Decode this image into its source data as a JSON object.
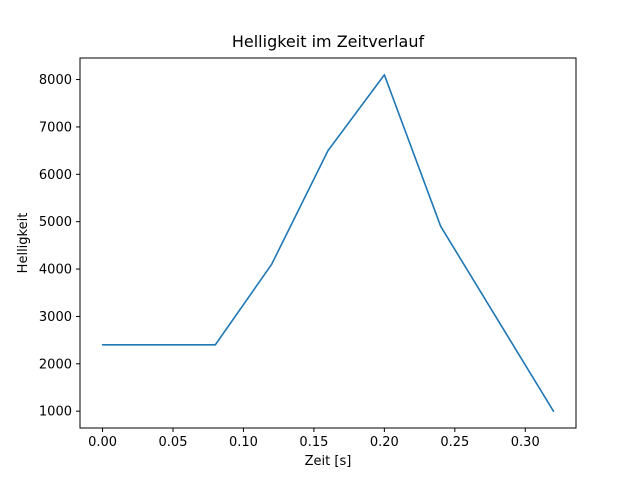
{
  "chart_data": {
    "type": "line",
    "title": "Helligkeit im Zeitverlauf",
    "xlabel": "Zeit [s]",
    "ylabel": "Helligkeit",
    "x": [
      0.0,
      0.04,
      0.08,
      0.12,
      0.16,
      0.2,
      0.24,
      0.28,
      0.32
    ],
    "y": [
      2400,
      2400,
      2400,
      4100,
      6500,
      8100,
      4900,
      2950,
      1000
    ],
    "xlim": [
      -0.016,
      0.336
    ],
    "ylim": [
      645,
      8455
    ],
    "xticks": [
      0.0,
      0.05,
      0.1,
      0.15,
      0.2,
      0.25,
      0.3
    ],
    "xtick_labels": [
      "0.00",
      "0.05",
      "0.10",
      "0.15",
      "0.20",
      "0.25",
      "0.30"
    ],
    "yticks": [
      1000,
      2000,
      3000,
      4000,
      5000,
      6000,
      7000,
      8000
    ],
    "ytick_labels": [
      "1000",
      "2000",
      "3000",
      "4000",
      "5000",
      "6000",
      "7000",
      "8000"
    ],
    "line_color": "#1f77b4",
    "axis_color": "#000000",
    "grid": false,
    "legend": "none"
  }
}
